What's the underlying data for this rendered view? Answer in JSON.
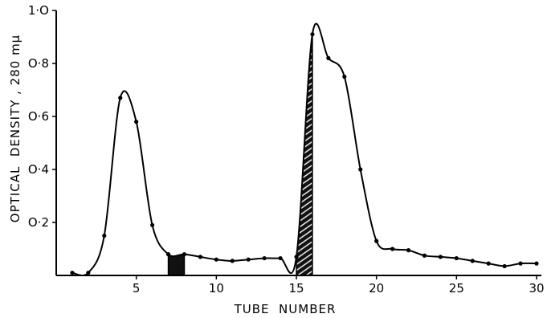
{
  "chart_data": {
    "type": "line",
    "title": "",
    "xlabel": "TUBE  NUMBER",
    "ylabel": "OPTICAL  DENSITY , 280 mμ",
    "xlim": [
      0,
      30
    ],
    "ylim": [
      0,
      1.0
    ],
    "x_ticks": [
      5,
      10,
      15,
      20,
      25,
      30
    ],
    "x_tick_labels": [
      "5",
      "10",
      "15",
      "20",
      "25",
      "30"
    ],
    "y_ticks": [
      0.2,
      0.4,
      0.6,
      0.8,
      1.0
    ],
    "y_tick_labels": [
      "O·2",
      "O·4",
      "O·6",
      "O·8",
      "1·O"
    ],
    "grid": false,
    "series": [
      {
        "x": [
          1,
          2,
          3,
          4,
          5,
          6,
          7,
          8,
          9,
          10,
          11,
          12,
          13,
          14,
          15,
          16,
          17,
          18,
          19,
          20,
          21,
          22,
          23,
          24,
          25,
          26,
          27,
          28,
          29,
          30
        ],
        "y": [
          0.01,
          0.01,
          0.15,
          0.67,
          0.58,
          0.19,
          0.08,
          0.08,
          0.07,
          0.06,
          0.055,
          0.06,
          0.065,
          0.065,
          0.07,
          0.91,
          0.82,
          0.75,
          0.4,
          0.13,
          0.1,
          0.095,
          0.075,
          0.07,
          0.065,
          0.055,
          0.045,
          0.035,
          0.045,
          0.045
        ]
      }
    ],
    "shaded_regions": [
      {
        "x_start": 7,
        "x_end": 8,
        "fill": "solid"
      },
      {
        "x_start": 15,
        "x_end": 16,
        "fill": "hatched"
      }
    ],
    "colors": {
      "line": "#000000",
      "background": "#ffffff"
    }
  }
}
